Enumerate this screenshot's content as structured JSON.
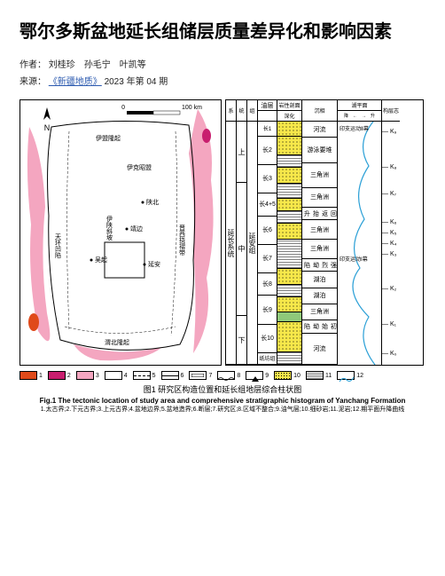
{
  "title": "鄂尔多斯盆地延长组储层质量差异化和影响因素",
  "authors_label": "作者：",
  "authors": "刘桂珍　孙毛宁　叶凯等",
  "source_label": "来源：",
  "source_journal": "《新疆地质》",
  "source_issue": "2023 年第 04 期",
  "figure": {
    "caption_cn": "图1 研究区构造位置和延长组地层综合柱状图",
    "caption_en": "Fig.1 The tectonic location of study area and comprehensive stratigraphic histogram of Yanchang Formation",
    "caption_detail": "1.太古界;2.下元古界;3.上元古界;4.盆地边界;5.盆地造界;6.断层;7.研究区;8.区域不整合;9.油气层;10.细砂岩;11.泥岩;12.期平面升降曲线"
  },
  "legend": [
    {
      "num": "1",
      "fill": "#e04a1a",
      "pattern": ""
    },
    {
      "num": "2",
      "fill": "#c81e6e",
      "pattern": ""
    },
    {
      "num": "3",
      "fill": "#f4a6c0",
      "pattern": ""
    },
    {
      "num": "4",
      "fill": "#ffffff",
      "pattern": "border"
    },
    {
      "num": "5",
      "fill": "#ffffff",
      "pattern": "dash"
    },
    {
      "num": "6",
      "fill": "#ffffff",
      "pattern": "line"
    },
    {
      "num": "7",
      "fill": "#ffffff",
      "pattern": "rect"
    },
    {
      "num": "8",
      "fill": "#ffffff",
      "pattern": "wavy"
    },
    {
      "num": "9",
      "fill": "#ffffff",
      "pattern": "tri"
    },
    {
      "num": "10",
      "fill": "#f7e84a",
      "pattern": "dots"
    },
    {
      "num": "11",
      "fill": "#ffffff",
      "pattern": "hlines"
    },
    {
      "num": "12",
      "fill": "#ffffff",
      "pattern": "curve"
    }
  ],
  "map": {
    "north_label": "N",
    "scale_min": "0",
    "scale_max": "100 km",
    "places": [
      "伊盟隆起",
      "伊克昭盟",
      "天环凹陷",
      "伊陕斜坡",
      "陕北",
      "晋西挠褶带",
      "渭北隆起",
      "吴起",
      "靖边",
      "延安"
    ],
    "colors": {
      "paleo1": "#e04a1a",
      "paleo2": "#c81e6e",
      "paleo3": "#f4a6c0",
      "basin_border": "#000000"
    }
  },
  "strat": {
    "header_top": [
      "地层系统",
      "岩性剖面",
      "沉相",
      "湖平面",
      "构层志"
    ],
    "header_sub": [
      "系",
      "统",
      "组",
      "油层",
      "深化",
      "降　←　→　升"
    ],
    "system": "延长系统",
    "series": [
      "上",
      "中",
      "下"
    ],
    "group": "延安组",
    "members": [
      "长1",
      "长2",
      "长3",
      "长4+5",
      "长6",
      "长7",
      "长8",
      "长9",
      "长10"
    ],
    "facies": [
      "河流",
      "游泳要堆",
      "三角洲",
      "三角洲",
      "三角洲",
      "回返抬升",
      "三角洲",
      "湖泊",
      "强烈坳陷",
      "湖泊",
      "三角洲",
      "初始坳陷",
      "河流"
    ],
    "tectonic": [
      "印支运动Ⅱ幕",
      "印支运动Ⅰ幕"
    ],
    "markers": [
      "K₉",
      "K₈",
      "K₇",
      "K₆",
      "K₅",
      "K₄",
      "K₃",
      "K₂",
      "K₁",
      "K₀"
    ],
    "bottom_label": "纸坊组",
    "colors": {
      "sand": "#f7e84a",
      "mud_line": "#000000",
      "curve": "#2a9fd6"
    }
  }
}
